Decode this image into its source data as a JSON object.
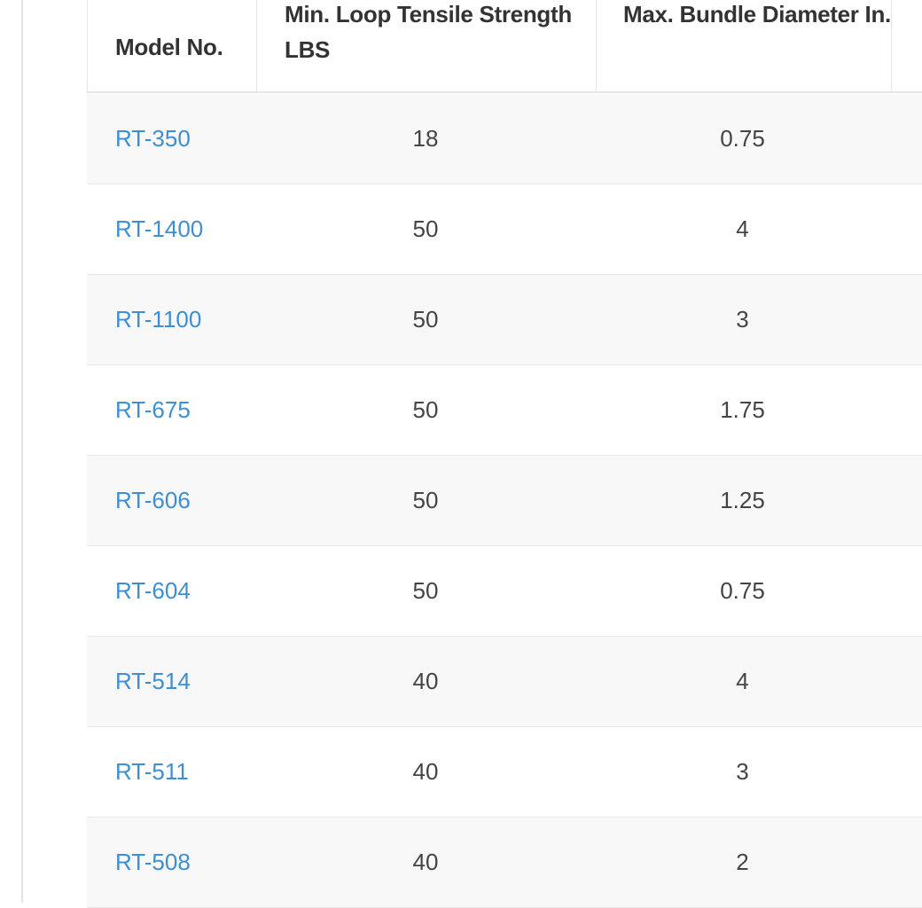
{
  "table": {
    "header": [
      "Model No.",
      "Min. Loop Tensile Strength LBS",
      "Max. Bundle Diameter In."
    ],
    "rows": [
      [
        "RT-350",
        18,
        0.75
      ],
      [
        "RT-1400",
        50,
        4
      ],
      [
        "RT-1100",
        50,
        3
      ],
      [
        "RT-675",
        50,
        1.75
      ],
      [
        "RT-606",
        50,
        1.25
      ],
      [
        "RT-604",
        50,
        0.75
      ],
      [
        "RT-514",
        40,
        4
      ],
      [
        "RT-511",
        40,
        3
      ],
      [
        "RT-508",
        40,
        2
      ]
    ]
  }
}
